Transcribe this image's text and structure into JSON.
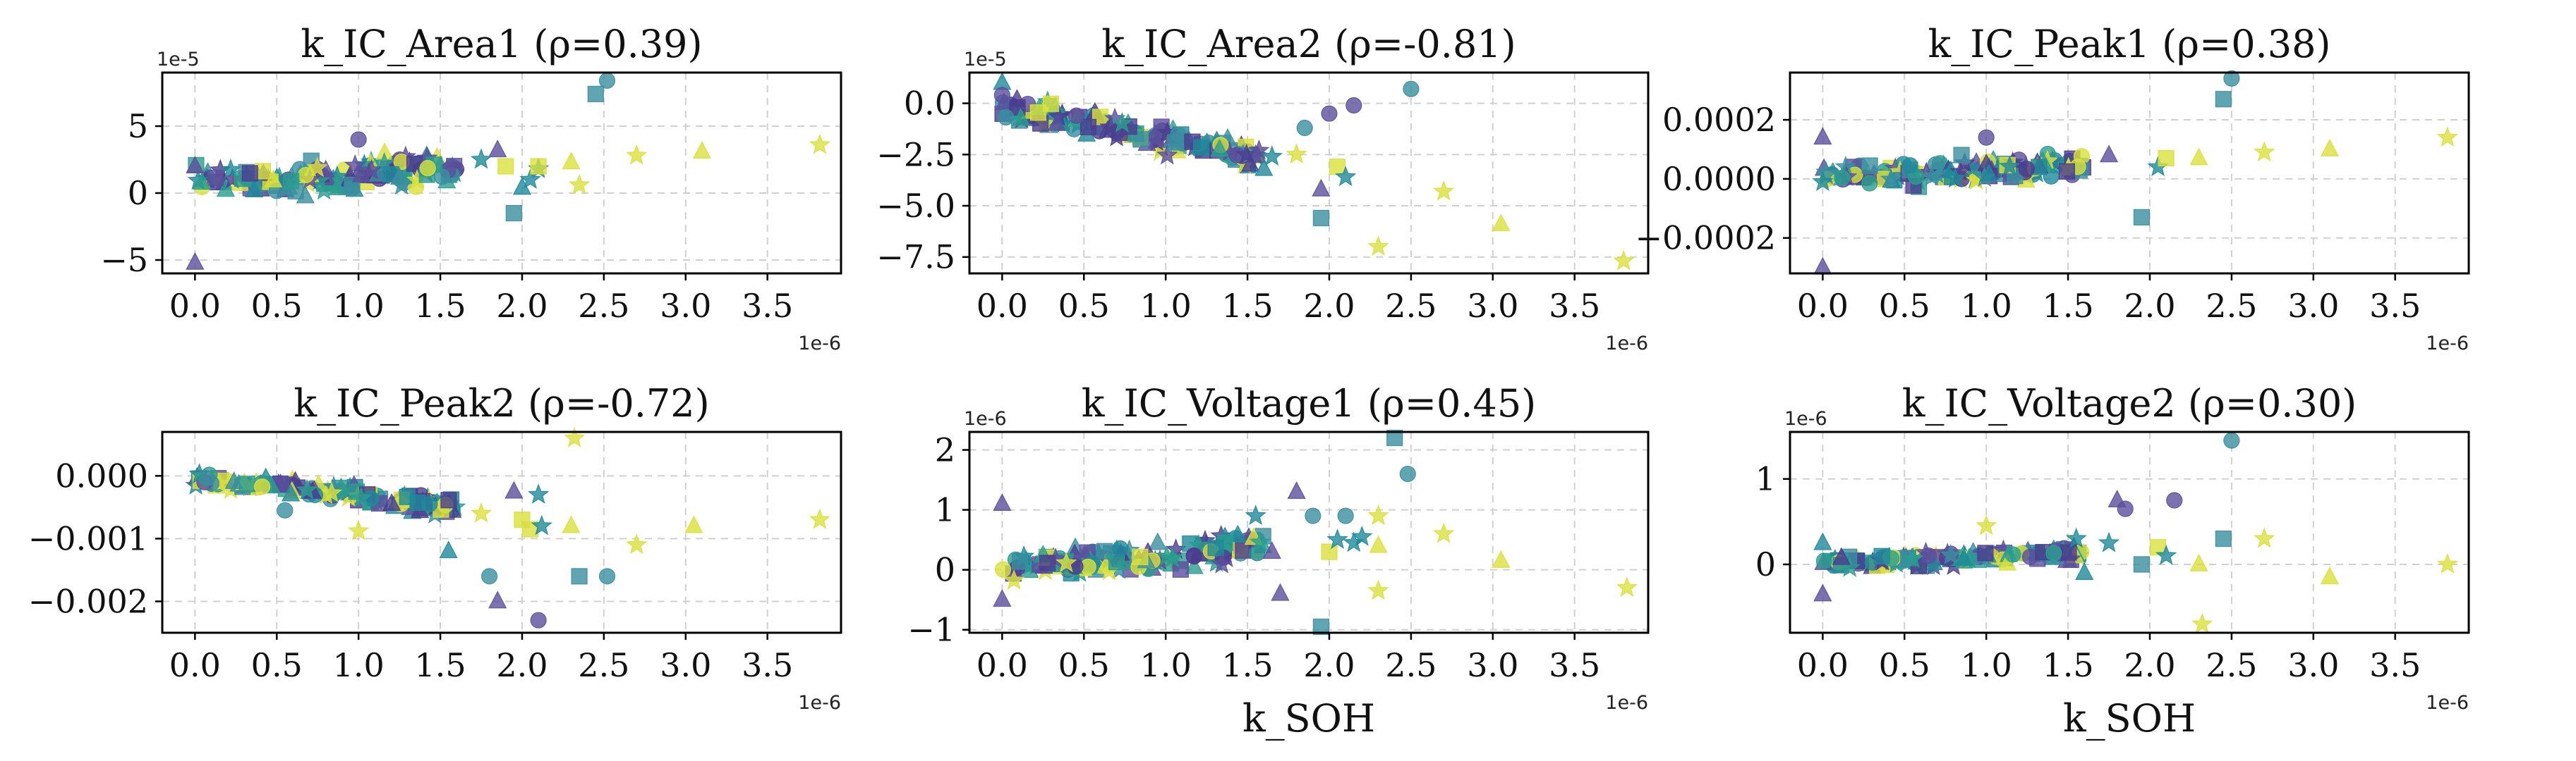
{
  "figure": {
    "title": ""
  },
  "chart_data": [
    {
      "type": "scatter",
      "title": "k_IC_Area1 (ρ=0.39)",
      "xlabel": "",
      "ylabel": "",
      "x_offset_label": "1e-6",
      "y_offset_label": "1e-5",
      "xlim": [
        -0.2,
        3.95
      ],
      "ylim": [
        -6,
        9
      ],
      "xticks": [
        0.0,
        0.5,
        1.0,
        1.5,
        2.0,
        2.5,
        3.0,
        3.5
      ],
      "xtick_labels": [
        "0.0",
        "0.5",
        "1.0",
        "1.5",
        "2.0",
        "2.5",
        "3.0",
        "3.5"
      ],
      "yticks": [
        -5,
        0,
        5
      ],
      "ytick_labels": [
        "−5",
        "0",
        "5"
      ],
      "grid": true,
      "center": [
        [
          0,
          0.8
        ],
        [
          0.5,
          0.9
        ],
        [
          1.0,
          1.4
        ],
        [
          1.5,
          1.9
        ]
      ],
      "noise": 1.1,
      "points": [
        {
          "x": 0.0,
          "y": -5.2,
          "m": "tri",
          "c": "#5c4f9c"
        },
        {
          "x": 0.0,
          "y": 2.0,
          "m": "tri",
          "c": "#5c4f9c"
        },
        {
          "x": 1.0,
          "y": 4.0,
          "m": "circ",
          "c": "#5c4f9c"
        },
        {
          "x": 1.85,
          "y": 3.2,
          "m": "tri",
          "c": "#5c4f9c"
        },
        {
          "x": 1.75,
          "y": 2.5,
          "m": "star",
          "c": "#1f8a9a"
        },
        {
          "x": 1.95,
          "y": -1.5,
          "m": "sq",
          "c": "#3a8fa0"
        },
        {
          "x": 2.0,
          "y": 0.4,
          "m": "tri",
          "c": "#1f8a9a"
        },
        {
          "x": 2.1,
          "y": 1.8,
          "m": "star",
          "c": "#1f8a9a"
        },
        {
          "x": 2.05,
          "y": 1.0,
          "m": "star",
          "c": "#1f8a9a"
        },
        {
          "x": 1.9,
          "y": 2.0,
          "m": "sq",
          "c": "#d9e03c"
        },
        {
          "x": 2.1,
          "y": 2.0,
          "m": "sq",
          "c": "#d9e03c"
        },
        {
          "x": 2.3,
          "y": 2.3,
          "m": "tri",
          "c": "#d9e03c"
        },
        {
          "x": 2.35,
          "y": 0.6,
          "m": "star",
          "c": "#d9e03c"
        },
        {
          "x": 2.45,
          "y": 7.4,
          "m": "sq",
          "c": "#3a8fa0"
        },
        {
          "x": 2.52,
          "y": 8.4,
          "m": "circ",
          "c": "#3a8fa0"
        },
        {
          "x": 2.7,
          "y": 2.8,
          "m": "star",
          "c": "#d9e03c"
        },
        {
          "x": 3.1,
          "y": 3.1,
          "m": "tri",
          "c": "#d9e03c"
        },
        {
          "x": 3.82,
          "y": 3.6,
          "m": "star",
          "c": "#d9e03c"
        }
      ]
    },
    {
      "type": "scatter",
      "title": "k_IC_Area2 (ρ=-0.81)",
      "xlabel": "",
      "ylabel": "",
      "x_offset_label": "1e-6",
      "y_offset_label": "1e-5",
      "xlim": [
        -0.2,
        3.95
      ],
      "ylim": [
        -8.3,
        1.5
      ],
      "xticks": [
        0.0,
        0.5,
        1.0,
        1.5,
        2.0,
        2.5,
        3.0,
        3.5
      ],
      "xtick_labels": [
        "0.0",
        "0.5",
        "1.0",
        "1.5",
        "2.0",
        "2.5",
        "3.0",
        "3.5"
      ],
      "yticks": [
        0.0,
        -2.5,
        -5.0,
        -7.5
      ],
      "ytick_labels": [
        "0.0",
        "−2.5",
        "−5.0",
        "−7.5"
      ],
      "grid": true,
      "center": [
        [
          0,
          -0.2
        ],
        [
          0.5,
          -0.9
        ],
        [
          1.0,
          -1.7
        ],
        [
          1.5,
          -2.5
        ]
      ],
      "noise": 0.45,
      "points": [
        {
          "x": 0.0,
          "y": 1.0,
          "m": "tri",
          "c": "#1f8a9a"
        },
        {
          "x": 0.0,
          "y": 0.4,
          "m": "circ",
          "c": "#5c4f9c"
        },
        {
          "x": 1.6,
          "y": -3.2,
          "m": "tri",
          "c": "#1f8a9a"
        },
        {
          "x": 1.65,
          "y": -2.6,
          "m": "star",
          "c": "#1f8a9a"
        },
        {
          "x": 1.8,
          "y": -2.5,
          "m": "star",
          "c": "#d9e03c"
        },
        {
          "x": 1.85,
          "y": -1.2,
          "m": "circ",
          "c": "#3a8fa0"
        },
        {
          "x": 1.95,
          "y": -4.2,
          "m": "tri",
          "c": "#5c4f9c"
        },
        {
          "x": 1.95,
          "y": -5.6,
          "m": "sq",
          "c": "#3a8fa0"
        },
        {
          "x": 2.05,
          "y": -3.1,
          "m": "sq",
          "c": "#d9e03c"
        },
        {
          "x": 2.1,
          "y": -3.6,
          "m": "star",
          "c": "#1f8a9a"
        },
        {
          "x": 2.15,
          "y": -0.1,
          "m": "circ",
          "c": "#5c4f9c"
        },
        {
          "x": 2.0,
          "y": -0.5,
          "m": "circ",
          "c": "#5c4f9c"
        },
        {
          "x": 2.3,
          "y": -7.0,
          "m": "star",
          "c": "#d9e03c"
        },
        {
          "x": 2.5,
          "y": 0.7,
          "m": "circ",
          "c": "#3a8fa0"
        },
        {
          "x": 2.7,
          "y": -4.3,
          "m": "star",
          "c": "#d9e03c"
        },
        {
          "x": 3.05,
          "y": -5.9,
          "m": "tri",
          "c": "#d9e03c"
        },
        {
          "x": 3.8,
          "y": -7.7,
          "m": "star",
          "c": "#d9e03c"
        }
      ]
    },
    {
      "type": "scatter",
      "title": "k_IC_Peak1 (ρ=0.38)",
      "xlabel": "",
      "ylabel": "",
      "x_offset_label": "1e-6",
      "y_offset_label": "",
      "xlim": [
        -0.2,
        3.95
      ],
      "ylim": [
        -0.00032,
        0.00036
      ],
      "xticks": [
        0.0,
        0.5,
        1.0,
        1.5,
        2.0,
        2.5,
        3.0,
        3.5
      ],
      "xtick_labels": [
        "0.0",
        "0.5",
        "1.0",
        "1.5",
        "2.0",
        "2.5",
        "3.0",
        "3.5"
      ],
      "yticks": [
        0.0002,
        0.0,
        -0.0002
      ],
      "ytick_labels": [
        "0.0002",
        "0.0000",
        "−0.0002"
      ],
      "grid": true,
      "center": [
        [
          0,
          1e-05
        ],
        [
          0.5,
          2e-05
        ],
        [
          1.0,
          3e-05
        ],
        [
          1.5,
          4e-05
        ]
      ],
      "noise": 3.5e-05,
      "points": [
        {
          "x": 0.0,
          "y": -0.0003,
          "m": "tri",
          "c": "#5c4f9c"
        },
        {
          "x": 0.0,
          "y": 0.00014,
          "m": "tri",
          "c": "#5c4f9c"
        },
        {
          "x": 1.0,
          "y": 0.00014,
          "m": "circ",
          "c": "#5c4f9c"
        },
        {
          "x": 1.75,
          "y": 8e-05,
          "m": "tri",
          "c": "#5c4f9c"
        },
        {
          "x": 1.95,
          "y": -0.00013,
          "m": "sq",
          "c": "#3a8fa0"
        },
        {
          "x": 2.05,
          "y": 4e-05,
          "m": "star",
          "c": "#1f8a9a"
        },
        {
          "x": 2.1,
          "y": 7e-05,
          "m": "sq",
          "c": "#d9e03c"
        },
        {
          "x": 2.3,
          "y": 7e-05,
          "m": "tri",
          "c": "#d9e03c"
        },
        {
          "x": 2.45,
          "y": 0.00027,
          "m": "sq",
          "c": "#3a8fa0"
        },
        {
          "x": 2.5,
          "y": 0.00034,
          "m": "circ",
          "c": "#3a8fa0"
        },
        {
          "x": 2.7,
          "y": 9e-05,
          "m": "star",
          "c": "#d9e03c"
        },
        {
          "x": 3.1,
          "y": 0.0001,
          "m": "tri",
          "c": "#d9e03c"
        },
        {
          "x": 3.82,
          "y": 0.00014,
          "m": "star",
          "c": "#d9e03c"
        }
      ]
    },
    {
      "type": "scatter",
      "title": "k_IC_Peak2 (ρ=-0.72)",
      "xlabel": "",
      "ylabel": "",
      "x_offset_label": "1e-6",
      "y_offset_label": "",
      "xlim": [
        -0.2,
        3.95
      ],
      "ylim": [
        -0.0025,
        0.0007
      ],
      "xticks": [
        0.0,
        0.5,
        1.0,
        1.5,
        2.0,
        2.5,
        3.0,
        3.5
      ],
      "xtick_labels": [
        "0.0",
        "0.5",
        "1.0",
        "1.5",
        "2.0",
        "2.5",
        "3.0",
        "3.5"
      ],
      "yticks": [
        0.0,
        -0.001,
        -0.002
      ],
      "ytick_labels": [
        "0.000",
        "−0.001",
        "−0.002"
      ],
      "grid": true,
      "center": [
        [
          0,
          -5e-05
        ],
        [
          0.5,
          -0.00018
        ],
        [
          1.0,
          -0.00032
        ],
        [
          1.5,
          -0.0005
        ]
      ],
      "noise": 0.00011,
      "points": [
        {
          "x": 0.55,
          "y": -0.00055,
          "m": "circ",
          "c": "#3a8fa0"
        },
        {
          "x": 1.0,
          "y": -0.00088,
          "m": "star",
          "c": "#d9e03c"
        },
        {
          "x": 1.55,
          "y": -0.0012,
          "m": "tri",
          "c": "#1f8a9a"
        },
        {
          "x": 1.75,
          "y": -0.0006,
          "m": "star",
          "c": "#d9e03c"
        },
        {
          "x": 1.8,
          "y": -0.0016,
          "m": "circ",
          "c": "#3a8fa0"
        },
        {
          "x": 1.85,
          "y": -0.002,
          "m": "tri",
          "c": "#5c4f9c"
        },
        {
          "x": 1.95,
          "y": -0.00025,
          "m": "tri",
          "c": "#5c4f9c"
        },
        {
          "x": 2.0,
          "y": -0.0007,
          "m": "sq",
          "c": "#d9e03c"
        },
        {
          "x": 2.05,
          "y": -0.00085,
          "m": "sq",
          "c": "#d9e03c"
        },
        {
          "x": 2.1,
          "y": -0.0003,
          "m": "star",
          "c": "#1f8a9a"
        },
        {
          "x": 2.12,
          "y": -0.0008,
          "m": "star",
          "c": "#1f8a9a"
        },
        {
          "x": 2.1,
          "y": -0.0023,
          "m": "circ",
          "c": "#5c4f9c"
        },
        {
          "x": 2.3,
          "y": -0.0008,
          "m": "tri",
          "c": "#d9e03c"
        },
        {
          "x": 2.32,
          "y": 0.0006,
          "m": "star",
          "c": "#d9e03c"
        },
        {
          "x": 2.35,
          "y": -0.0016,
          "m": "sq",
          "c": "#3a8fa0"
        },
        {
          "x": 2.52,
          "y": -0.0016,
          "m": "circ",
          "c": "#3a8fa0"
        },
        {
          "x": 2.7,
          "y": -0.0011,
          "m": "star",
          "c": "#d9e03c"
        },
        {
          "x": 3.05,
          "y": -0.0008,
          "m": "tri",
          "c": "#d9e03c"
        },
        {
          "x": 3.82,
          "y": -0.0007,
          "m": "star",
          "c": "#d9e03c"
        }
      ]
    },
    {
      "type": "scatter",
      "title": "k_IC_Voltage1 (ρ=0.45)",
      "xlabel": "k_SOH",
      "ylabel": "",
      "x_offset_label": "1e-6",
      "y_offset_label": "1e-6",
      "xlim": [
        -0.2,
        3.95
      ],
      "ylim": [
        -1.05,
        2.3
      ],
      "xticks": [
        0.0,
        0.5,
        1.0,
        1.5,
        2.0,
        2.5,
        3.0,
        3.5
      ],
      "xtick_labels": [
        "0.0",
        "0.5",
        "1.0",
        "1.5",
        "2.0",
        "2.5",
        "3.0",
        "3.5"
      ],
      "yticks": [
        2,
        1,
        0,
        -1
      ],
      "ytick_labels": [
        "2",
        "1",
        "0",
        "−1"
      ],
      "grid": true,
      "center": [
        [
          0,
          0.05
        ],
        [
          0.5,
          0.12
        ],
        [
          1.0,
          0.25
        ],
        [
          1.5,
          0.38
        ]
      ],
      "noise": 0.2,
      "points": [
        {
          "x": 0.0,
          "y": 1.1,
          "m": "tri",
          "c": "#5c4f9c"
        },
        {
          "x": 0.0,
          "y": -0.5,
          "m": "tri",
          "c": "#5c4f9c"
        },
        {
          "x": 1.55,
          "y": 0.9,
          "m": "star",
          "c": "#1f8a9a"
        },
        {
          "x": 1.65,
          "y": 0.3,
          "m": "tri",
          "c": "#5c4f9c"
        },
        {
          "x": 1.7,
          "y": -0.4,
          "m": "tri",
          "c": "#5c4f9c"
        },
        {
          "x": 1.8,
          "y": 1.3,
          "m": "tri",
          "c": "#5c4f9c"
        },
        {
          "x": 1.9,
          "y": 0.9,
          "m": "circ",
          "c": "#3a8fa0"
        },
        {
          "x": 1.95,
          "y": -0.95,
          "m": "sq",
          "c": "#3a8fa0"
        },
        {
          "x": 2.0,
          "y": 0.3,
          "m": "sq",
          "c": "#d9e03c"
        },
        {
          "x": 2.05,
          "y": 0.5,
          "m": "star",
          "c": "#1f8a9a"
        },
        {
          "x": 2.1,
          "y": 0.9,
          "m": "circ",
          "c": "#3a8fa0"
        },
        {
          "x": 2.15,
          "y": 0.45,
          "m": "star",
          "c": "#1f8a9a"
        },
        {
          "x": 2.2,
          "y": 0.55,
          "m": "star",
          "c": "#1f8a9a"
        },
        {
          "x": 2.3,
          "y": 0.9,
          "m": "star",
          "c": "#d9e03c"
        },
        {
          "x": 2.3,
          "y": -0.35,
          "m": "star",
          "c": "#d9e03c"
        },
        {
          "x": 2.3,
          "y": 0.4,
          "m": "tri",
          "c": "#d9e03c"
        },
        {
          "x": 2.4,
          "y": 2.2,
          "m": "sq",
          "c": "#3a8fa0"
        },
        {
          "x": 2.48,
          "y": 1.6,
          "m": "circ",
          "c": "#3a8fa0"
        },
        {
          "x": 2.7,
          "y": 0.6,
          "m": "star",
          "c": "#d9e03c"
        },
        {
          "x": 3.05,
          "y": 0.15,
          "m": "tri",
          "c": "#d9e03c"
        },
        {
          "x": 3.82,
          "y": -0.3,
          "m": "star",
          "c": "#d9e03c"
        }
      ]
    },
    {
      "type": "scatter",
      "title": "k_IC_Voltage2 (ρ=0.30)",
      "xlabel": "k_SOH",
      "ylabel": "",
      "x_offset_label": "1e-6",
      "y_offset_label": "1e-6",
      "xlim": [
        -0.2,
        3.95
      ],
      "ylim": [
        -0.8,
        1.55
      ],
      "xticks": [
        0.0,
        0.5,
        1.0,
        1.5,
        2.0,
        2.5,
        3.0,
        3.5
      ],
      "xtick_labels": [
        "0.0",
        "0.5",
        "1.0",
        "1.5",
        "2.0",
        "2.5",
        "3.0",
        "3.5"
      ],
      "yticks": [
        1,
        0
      ],
      "ytick_labels": [
        "1",
        "0"
      ],
      "grid": true,
      "center": [
        [
          0,
          0.02
        ],
        [
          0.5,
          0.04
        ],
        [
          1.0,
          0.08
        ],
        [
          1.5,
          0.14
        ]
      ],
      "noise": 0.07,
      "points": [
        {
          "x": 0.0,
          "y": -0.35,
          "m": "tri",
          "c": "#5c4f9c"
        },
        {
          "x": 0.0,
          "y": 0.25,
          "m": "tri",
          "c": "#1f8a9a"
        },
        {
          "x": 1.0,
          "y": 0.45,
          "m": "star",
          "c": "#d9e03c"
        },
        {
          "x": 1.55,
          "y": 0.3,
          "m": "star",
          "c": "#1f8a9a"
        },
        {
          "x": 1.6,
          "y": -0.1,
          "m": "tri",
          "c": "#1f8a9a"
        },
        {
          "x": 1.75,
          "y": 0.25,
          "m": "star",
          "c": "#1f8a9a"
        },
        {
          "x": 1.8,
          "y": 0.75,
          "m": "tri",
          "c": "#5c4f9c"
        },
        {
          "x": 1.85,
          "y": 0.65,
          "m": "circ",
          "c": "#5c4f9c"
        },
        {
          "x": 1.95,
          "y": 0.0,
          "m": "sq",
          "c": "#3a8fa0"
        },
        {
          "x": 2.05,
          "y": 0.2,
          "m": "sq",
          "c": "#d9e03c"
        },
        {
          "x": 2.1,
          "y": 0.1,
          "m": "star",
          "c": "#1f8a9a"
        },
        {
          "x": 2.15,
          "y": 0.75,
          "m": "circ",
          "c": "#5c4f9c"
        },
        {
          "x": 2.3,
          "y": 0.0,
          "m": "tri",
          "c": "#d9e03c"
        },
        {
          "x": 2.32,
          "y": -0.7,
          "m": "star",
          "c": "#d9e03c"
        },
        {
          "x": 2.45,
          "y": 0.3,
          "m": "sq",
          "c": "#3a8fa0"
        },
        {
          "x": 2.5,
          "y": 1.45,
          "m": "circ",
          "c": "#3a8fa0"
        },
        {
          "x": 2.7,
          "y": 0.3,
          "m": "star",
          "c": "#d9e03c"
        },
        {
          "x": 3.1,
          "y": -0.15,
          "m": "tri",
          "c": "#d9e03c"
        },
        {
          "x": 3.82,
          "y": 0.0,
          "m": "star",
          "c": "#d9e03c"
        }
      ]
    }
  ],
  "palette": [
    "#4b3d8f",
    "#5c4f9c",
    "#3a8fa0",
    "#1f8a9a",
    "#2a9d8f",
    "#d9e03c"
  ],
  "markers": [
    "circ",
    "tri",
    "sq",
    "star"
  ],
  "cluster_points_per_panel": 140,
  "cluster_x_range": [
    0.0,
    1.6
  ]
}
